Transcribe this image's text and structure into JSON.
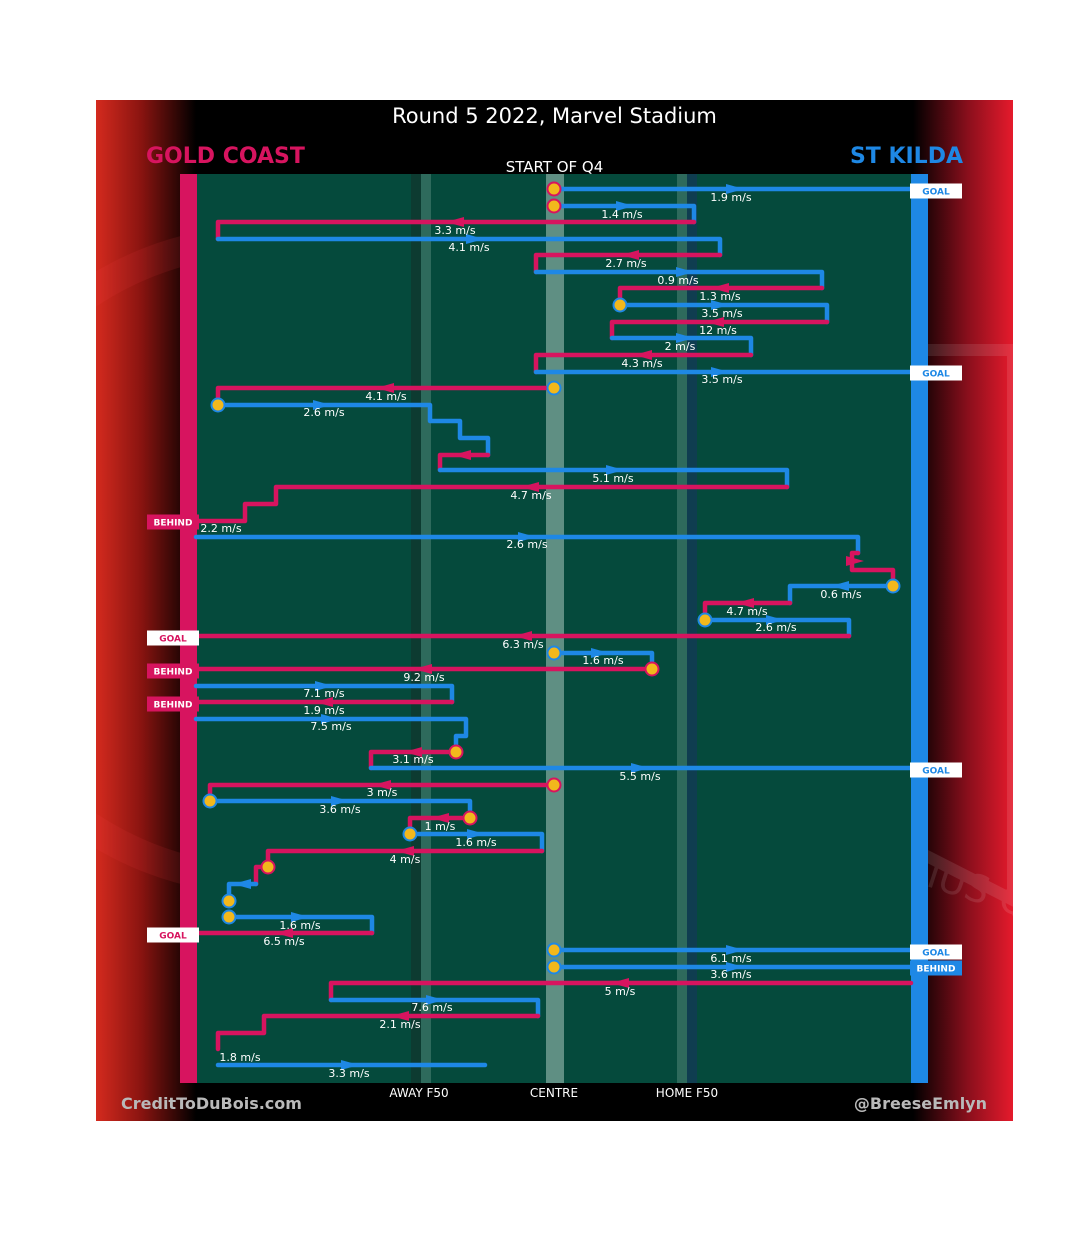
{
  "header": {
    "title": "Round 5 2022, Marvel Stadium",
    "home_team": "GOLD COAST",
    "away_team": "ST KILDA",
    "quarter": "START OF Q4"
  },
  "footer": {
    "credit_left": "CreditToDuBois.com",
    "credit_right": "@BreeseEmlyn"
  },
  "axis": {
    "away_f50": "AWAY F50",
    "centre": "CENTRE",
    "home_f50": "HOME F50"
  },
  "watermark": {
    "club_text": "FORTIUS QU"
  },
  "colors": {
    "gold_coast": "#d7145f",
    "st_kilda": "#1e88e5",
    "field": "#054a3c",
    "restart_marker": "#f2b81c"
  },
  "chart_data": {
    "type": "diagram",
    "speed_labels": [
      {
        "team": "stk",
        "text": "1.9 m/s"
      },
      {
        "team": "stk",
        "text": "1.4 m/s"
      },
      {
        "team": "gc",
        "text": "3.3 m/s"
      },
      {
        "team": "stk",
        "text": "4.1 m/s"
      },
      {
        "team": "gc",
        "text": "2.7 m/s"
      },
      {
        "team": "stk",
        "text": "0.9 m/s"
      },
      {
        "team": "gc",
        "text": "1.3 m/s"
      },
      {
        "team": "stk",
        "text": "3.5 m/s"
      },
      {
        "team": "gc",
        "text": "12 m/s"
      },
      {
        "team": "stk",
        "text": "2 m/s"
      },
      {
        "team": "gc",
        "text": "4.3 m/s"
      },
      {
        "team": "stk",
        "text": "3.5 m/s"
      },
      {
        "team": "gc",
        "text": "4.1 m/s"
      },
      {
        "team": "stk",
        "text": "2.6 m/s"
      },
      {
        "team": "stk",
        "text": "5.1 m/s"
      },
      {
        "team": "gc",
        "text": "4.7 m/s"
      },
      {
        "team": "gc",
        "text": "2.2 m/s"
      },
      {
        "team": "stk",
        "text": "2.6 m/s"
      },
      {
        "team": "stk",
        "text": "0.6 m/s"
      },
      {
        "team": "gc",
        "text": "4.7 m/s"
      },
      {
        "team": "stk",
        "text": "2.6 m/s"
      },
      {
        "team": "gc",
        "text": "6.3 m/s"
      },
      {
        "team": "stk",
        "text": "1.6 m/s"
      },
      {
        "team": "gc",
        "text": "9.2 m/s"
      },
      {
        "team": "stk",
        "text": "7.1 m/s"
      },
      {
        "team": "gc",
        "text": "1.9 m/s"
      },
      {
        "team": "stk",
        "text": "7.5 m/s"
      },
      {
        "team": "gc",
        "text": "3.1 m/s"
      },
      {
        "team": "stk",
        "text": "5.5 m/s"
      },
      {
        "team": "gc",
        "text": "3 m/s"
      },
      {
        "team": "stk",
        "text": "3.6 m/s"
      },
      {
        "team": "gc",
        "text": "1 m/s"
      },
      {
        "team": "stk",
        "text": "1.6 m/s"
      },
      {
        "team": "gc",
        "text": "4 m/s"
      },
      {
        "team": "stk",
        "text": "1.6 m/s"
      },
      {
        "team": "gc",
        "text": "6.5 m/s"
      },
      {
        "team": "stk",
        "text": "6.1 m/s"
      },
      {
        "team": "stk",
        "text": "3.6 m/s"
      },
      {
        "team": "gc",
        "text": "5 m/s"
      },
      {
        "team": "stk",
        "text": "7.6 m/s"
      },
      {
        "team": "gc",
        "text": "2.1 m/s"
      },
      {
        "team": "gc",
        "text": "1.8 m/s"
      },
      {
        "team": "stk",
        "text": "3.3 m/s"
      }
    ],
    "score_tags": [
      {
        "team": "stk",
        "text": "GOAL"
      },
      {
        "team": "stk",
        "text": "GOAL"
      },
      {
        "team": "gc",
        "text": "BEHIND"
      },
      {
        "team": "gc",
        "text": "GOAL"
      },
      {
        "team": "gc",
        "text": "BEHIND"
      },
      {
        "team": "gc",
        "text": "BEHIND"
      },
      {
        "team": "stk",
        "text": "GOAL"
      },
      {
        "team": "gc",
        "text": "GOAL"
      },
      {
        "team": "stk",
        "text": "GOAL"
      },
      {
        "team": "stk",
        "text": "BEHIND"
      }
    ]
  }
}
